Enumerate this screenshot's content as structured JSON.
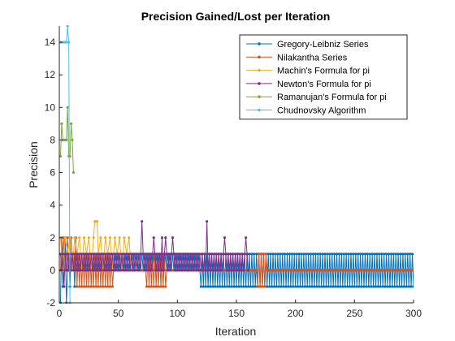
{
  "chart_data": {
    "type": "line",
    "title": "Precision Gained/Lost per Iteration",
    "xlabel": "Iteration",
    "ylabel": "Precision",
    "xlim": [
      0,
      300
    ],
    "ylim": [
      -2,
      15
    ],
    "xticks": [
      0,
      50,
      100,
      150,
      200,
      250,
      300
    ],
    "yticks": [
      -2,
      0,
      2,
      4,
      6,
      8,
      10,
      12,
      14
    ],
    "grid": false,
    "legend_position": "top-right",
    "series": [
      {
        "name": "Gregory-Leibniz Series",
        "color": "#0072BD",
        "pattern": "alternating",
        "x_range": [
          1,
          300
        ],
        "early": [
          [
            1,
            -2
          ],
          [
            2,
            2
          ],
          [
            3,
            -1
          ],
          [
            4,
            1
          ],
          [
            5,
            2
          ],
          [
            6,
            -2
          ],
          [
            7,
            0
          ],
          [
            8,
            1
          ],
          [
            9,
            -1
          ],
          [
            10,
            1
          ],
          [
            11,
            0
          ],
          [
            12,
            1
          ],
          [
            13,
            -1
          ],
          [
            14,
            1
          ],
          [
            15,
            0
          ]
        ],
        "alt_segments": [
          {
            "from": 15,
            "to": 119,
            "values": [
              0,
              1
            ]
          },
          {
            "from": 120,
            "to": 300,
            "values": [
              -1,
              1
            ]
          }
        ]
      },
      {
        "name": "Nilakantha Series",
        "color": "#D95319",
        "pattern": "alternating",
        "x_range": [
          1,
          300
        ],
        "early": [
          [
            1,
            0
          ],
          [
            2,
            2
          ],
          [
            3,
            1
          ],
          [
            4,
            2
          ],
          [
            5,
            0
          ],
          [
            6,
            1
          ],
          [
            7,
            2
          ],
          [
            8,
            0
          ],
          [
            9,
            1
          ],
          [
            10,
            2
          ],
          [
            11,
            0
          ],
          [
            12,
            1
          ],
          [
            13,
            0
          ],
          [
            14,
            2
          ],
          [
            15,
            -1
          ]
        ],
        "alt_segments": [
          {
            "from": 15,
            "to": 45,
            "values": [
              -1,
              1
            ]
          },
          {
            "from": 46,
            "to": 73,
            "values": [
              0,
              0
            ]
          },
          {
            "from": 74,
            "to": 90,
            "values": [
              -1,
              1
            ]
          },
          {
            "from": 91,
            "to": 167,
            "values": [
              0,
              0
            ]
          },
          {
            "from": 168,
            "to": 175,
            "values": [
              -1,
              1
            ]
          },
          {
            "from": 176,
            "to": 300,
            "values": [
              0,
              0
            ]
          }
        ]
      },
      {
        "name": "Machin's Formula for pi",
        "color": "#EDB120",
        "pattern": "points",
        "points": [
          [
            1,
            2
          ],
          [
            3,
            0
          ],
          [
            5,
            2
          ],
          [
            7,
            1
          ],
          [
            9,
            2
          ],
          [
            11,
            0
          ],
          [
            13,
            2
          ],
          [
            15,
            1
          ],
          [
            17,
            2
          ],
          [
            19,
            0
          ],
          [
            21,
            2
          ],
          [
            23,
            1
          ],
          [
            25,
            2
          ],
          [
            27,
            0
          ],
          [
            29,
            2
          ],
          [
            30,
            3
          ],
          [
            31,
            3
          ],
          [
            32,
            3
          ],
          [
            33,
            1
          ],
          [
            35,
            2
          ],
          [
            37,
            0
          ],
          [
            39,
            2
          ],
          [
            41,
            1
          ],
          [
            43,
            2
          ],
          [
            45,
            0
          ],
          [
            47,
            2
          ],
          [
            49,
            1
          ],
          [
            51,
            2
          ],
          [
            53,
            0
          ],
          [
            55,
            2
          ],
          [
            57,
            1
          ],
          [
            59,
            2
          ],
          [
            61,
            0
          ],
          [
            63,
            1
          ],
          [
            65,
            0
          ],
          [
            67,
            1
          ],
          [
            68,
            0
          ]
        ]
      },
      {
        "name": "Newton's Formula for pi",
        "color": "#7E2F8E",
        "pattern": "alternating",
        "x_range": [
          1,
          160
        ],
        "early": [
          [
            1,
            1
          ],
          [
            2,
            0
          ],
          [
            3,
            1
          ],
          [
            4,
            -1
          ],
          [
            5,
            1
          ],
          [
            6,
            0
          ],
          [
            7,
            1
          ],
          [
            8,
            0
          ],
          [
            9,
            1
          ],
          [
            10,
            0
          ]
        ],
        "alt_segments": [
          {
            "from": 10,
            "to": 160,
            "values": [
              0,
              1
            ]
          }
        ],
        "spikes": [
          [
            70,
            3
          ],
          [
            80,
            2
          ],
          [
            87,
            2
          ],
          [
            90,
            2
          ],
          [
            96,
            2
          ],
          [
            125,
            3
          ],
          [
            140,
            2
          ],
          [
            158,
            2
          ]
        ]
      },
      {
        "name": "Ramanujan's Formula for pi",
        "color": "#77AC30",
        "pattern": "points",
        "points": [
          [
            1,
            7
          ],
          [
            2,
            9
          ],
          [
            3,
            8
          ],
          [
            4,
            8
          ],
          [
            5,
            8
          ],
          [
            6,
            8
          ],
          [
            7,
            10
          ],
          [
            8,
            7
          ],
          [
            9,
            7
          ],
          [
            10,
            9
          ],
          [
            11,
            8
          ],
          [
            12,
            6
          ]
        ]
      },
      {
        "name": "Chudnovsky Algorithm",
        "color": "#4DBEEE",
        "pattern": "points",
        "points": [
          [
            1,
            14
          ],
          [
            2,
            14
          ],
          [
            3,
            14
          ],
          [
            4,
            14
          ],
          [
            5,
            14
          ],
          [
            6,
            14
          ],
          [
            7,
            15
          ],
          [
            8,
            14
          ],
          [
            9,
            -2
          ]
        ]
      }
    ]
  }
}
